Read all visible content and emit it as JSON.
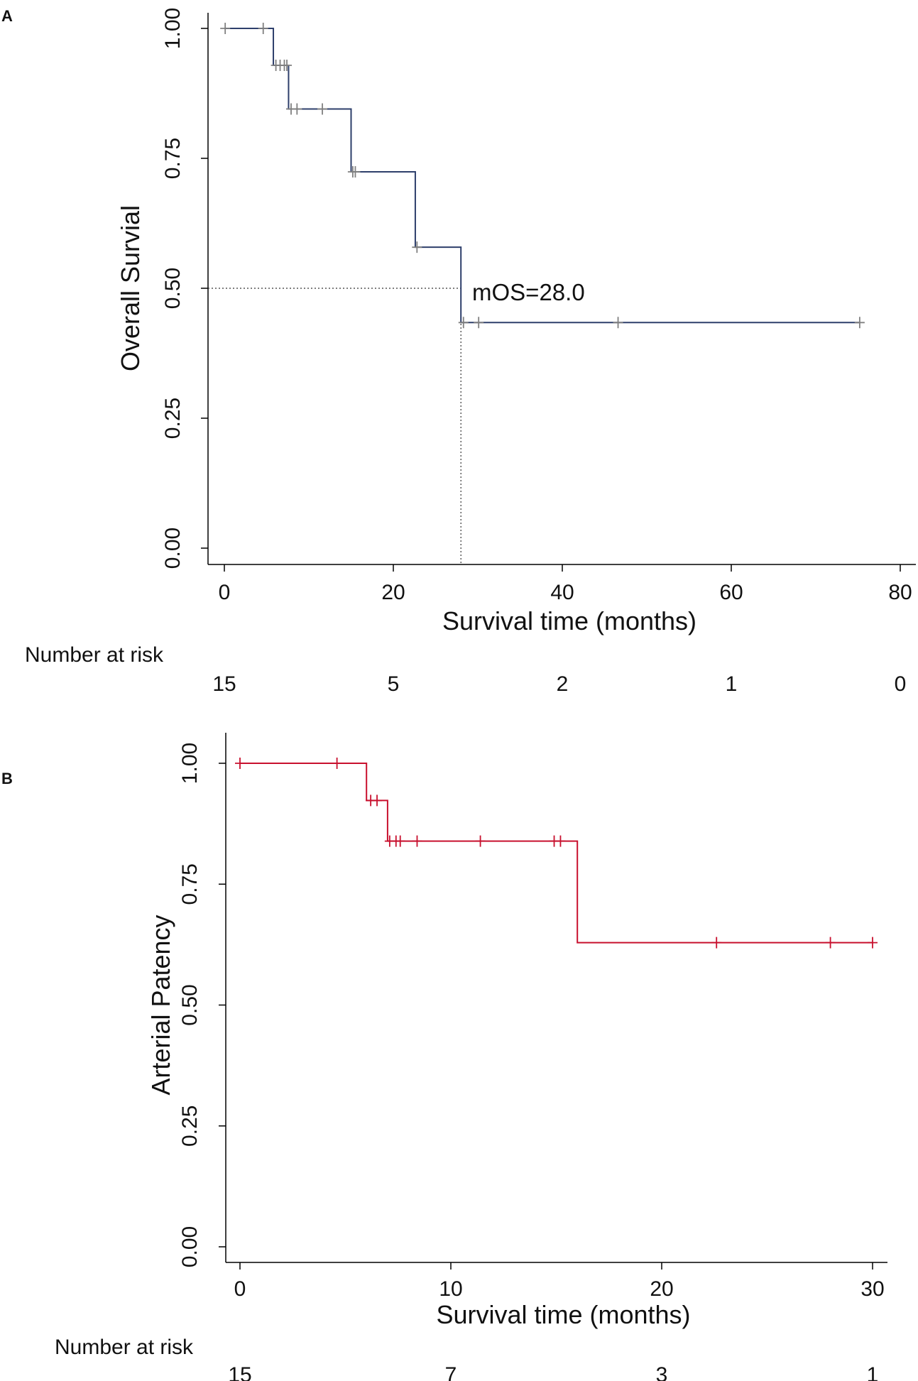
{
  "chart_data": [
    {
      "type": "line",
      "panel": "A",
      "step": true,
      "ylabel": "Overall Survial",
      "xlabel": "Survival time (months)",
      "xlim": [
        0,
        80
      ],
      "ylim": [
        0,
        1
      ],
      "x_ticks": [
        0,
        20,
        40,
        60,
        80
      ],
      "y_ticks": [
        0,
        0.25,
        0.5,
        0.75,
        1.0
      ],
      "y_tick_labels": [
        "0.00",
        "0.25",
        "0.50",
        "0.75",
        "1.00"
      ],
      "color": "#2e3f6b",
      "censor_color": "#808080",
      "series": [
        {
          "name": "Overall survival",
          "steps": [
            [
              0,
              1.0
            ],
            [
              5.8,
              0.929
            ],
            [
              7.6,
              0.845
            ],
            [
              15.0,
              0.724
            ],
            [
              22.6,
              0.579
            ],
            [
              28.0,
              0.434
            ],
            [
              75.2,
              0.434
            ]
          ],
          "censored": [
            [
              0.1,
              1.0
            ],
            [
              4.6,
              1.0
            ],
            [
              6.1,
              0.929
            ],
            [
              6.6,
              0.929
            ],
            [
              7.1,
              0.929
            ],
            [
              7.4,
              0.929
            ],
            [
              7.9,
              0.845
            ],
            [
              8.6,
              0.845
            ],
            [
              11.6,
              0.845
            ],
            [
              15.2,
              0.724
            ],
            [
              15.5,
              0.724
            ],
            [
              22.8,
              0.579
            ],
            [
              28.3,
              0.434
            ],
            [
              30.1,
              0.434
            ],
            [
              46.6,
              0.434
            ],
            [
              75.2,
              0.434
            ]
          ]
        }
      ],
      "median_line": {
        "x": 28.0,
        "y": 0.5
      },
      "annotation": "mOS=28.0",
      "risk_table": {
        "title": "Number at risk",
        "times": [
          0,
          20,
          40,
          60,
          80
        ],
        "values": [
          "15",
          "5",
          "2",
          "1",
          "0"
        ]
      }
    },
    {
      "type": "line",
      "panel": "B",
      "step": true,
      "ylabel": "Arterial Patency",
      "xlabel": "Survival time (months)",
      "xlim": [
        0,
        30
      ],
      "ylim": [
        0,
        1
      ],
      "x_ticks": [
        0,
        10,
        20,
        30
      ],
      "y_ticks": [
        0,
        0.25,
        0.5,
        0.75,
        1.0
      ],
      "y_tick_labels": [
        "0.00",
        "0.25",
        "0.50",
        "0.75",
        "1.00"
      ],
      "color": "#c8102e",
      "censor_color": "#c8102e",
      "series": [
        {
          "name": "Arterial patency",
          "steps": [
            [
              0,
              1.0
            ],
            [
              6.0,
              0.923
            ],
            [
              7.0,
              0.839
            ],
            [
              16.0,
              0.629
            ],
            [
              30.0,
              0.629
            ]
          ],
          "censored": [
            [
              0,
              1.0
            ],
            [
              4.6,
              1.0
            ],
            [
              6.2,
              0.923
            ],
            [
              6.5,
              0.923
            ],
            [
              7.1,
              0.839
            ],
            [
              7.4,
              0.839
            ],
            [
              7.6,
              0.839
            ],
            [
              8.4,
              0.839
            ],
            [
              11.4,
              0.839
            ],
            [
              14.9,
              0.839
            ],
            [
              15.2,
              0.839
            ],
            [
              22.6,
              0.629
            ],
            [
              28.0,
              0.629
            ],
            [
              30.0,
              0.629
            ]
          ]
        }
      ],
      "risk_table": {
        "title": "Number at risk",
        "times": [
          0,
          10,
          20,
          30
        ],
        "values": [
          "15",
          "7",
          "3",
          "1"
        ]
      }
    }
  ]
}
